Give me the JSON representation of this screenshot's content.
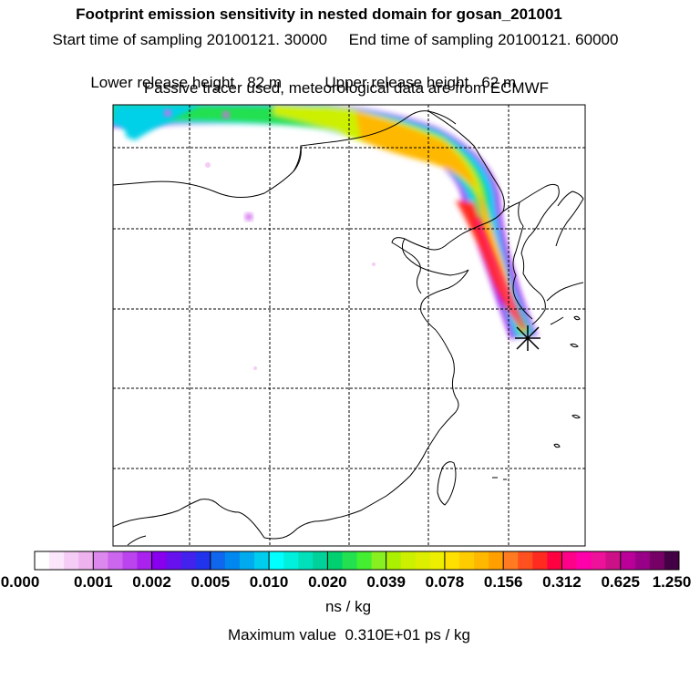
{
  "title": {
    "line1": "Footprint emission sensitivity in nested domain for gosan_201001",
    "line2": "Start time of sampling 20100121. 30000     End time of sampling 20100121. 60000",
    "line3": "Lower release height   82 m",
    "line3b": "Upper release height   62 m",
    "line4": "Passive tracer used, meteorological data are from ECMWF"
  },
  "colorbar": {
    "ticks": [
      "0.000",
      "0.001",
      "0.002",
      "0.005",
      "0.010",
      "0.020",
      "0.039",
      "0.078",
      "0.156",
      "0.312",
      "0.625",
      "1.250"
    ],
    "unit": "ns / kg",
    "colors": [
      "#ffffff",
      "#fbe6fb",
      "#f5ccf5",
      "#eeb3ee",
      "#dd88ee",
      "#cc66ee",
      "#bb44ee",
      "#aa22ee",
      "#8800ee",
      "#6611ee",
      "#4422ee",
      "#2233ee",
      "#1166ee",
      "#0088ee",
      "#00aaee",
      "#00ccee",
      "#00ffff",
      "#00f0dd",
      "#00e0bb",
      "#00d099",
      "#00d070",
      "#22e050",
      "#44ee30",
      "#88f020",
      "#aaf000",
      "#ccf000",
      "#ddee00",
      "#eeee00",
      "#ffe000",
      "#ffcc00",
      "#ffb800",
      "#ffa000",
      "#ff7a20",
      "#ff5020",
      "#ff2a20",
      "#ff0040",
      "#ff0088",
      "#ff00aa",
      "#ee1199",
      "#cc1188",
      "#bb0099",
      "#990088",
      "#770066",
      "#440044"
    ]
  },
  "max_value": "Maximum value  0.310E+01 ps / kg",
  "receptor": "gosan"
}
